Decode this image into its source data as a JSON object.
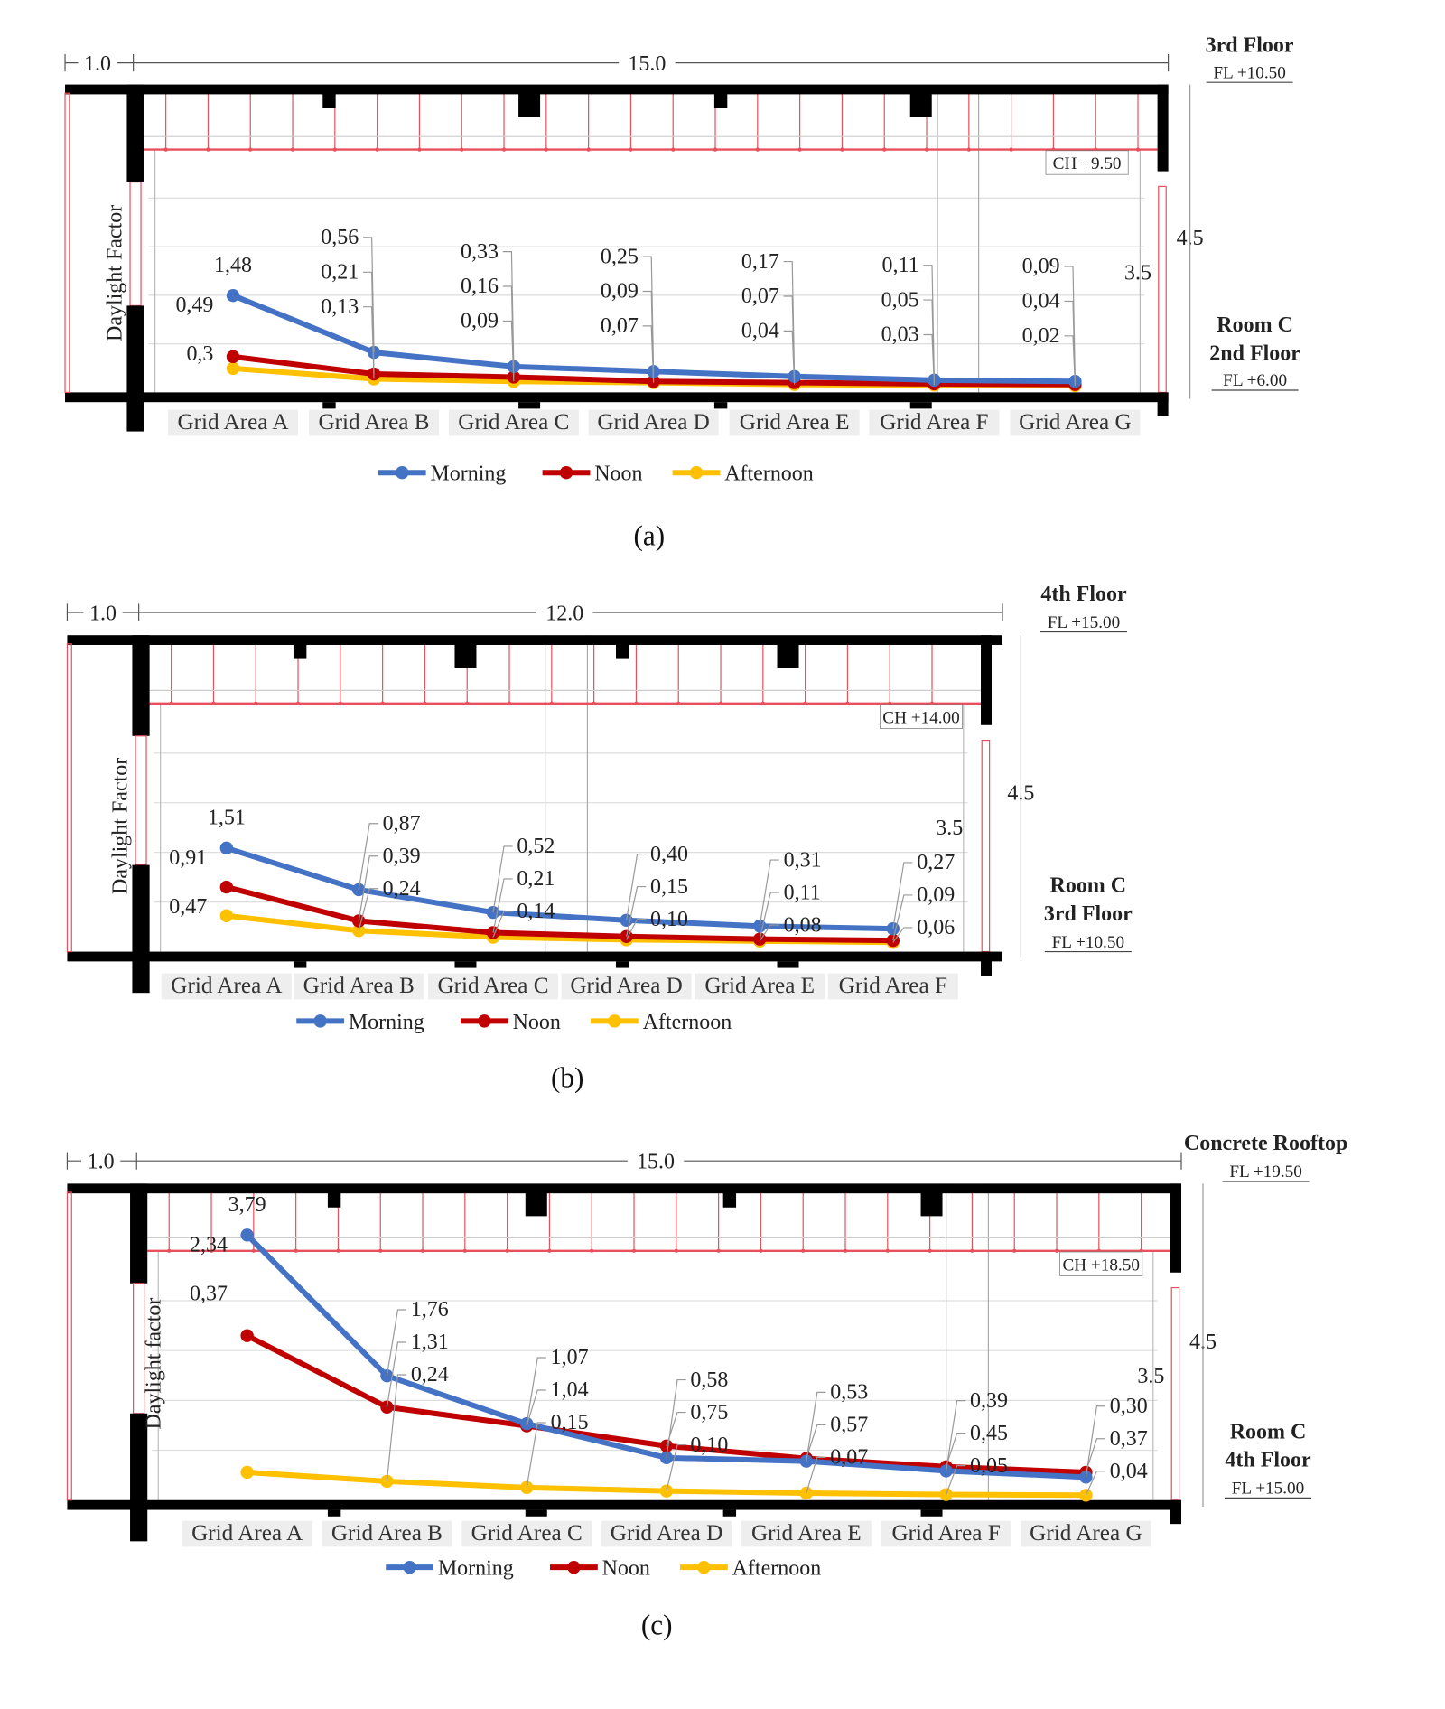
{
  "colors": {
    "Morning": "#4472c4",
    "Noon": "#c00000",
    "Afternoon": "#ffc000",
    "section_red": "#e8505b",
    "slab": "#000000"
  },
  "chart_data": [
    {
      "type": "line",
      "caption": "(a)",
      "ylabel": "Daylight Factor",
      "categories": [
        "Grid Area A",
        "Grid Area B",
        "Grid Area C",
        "Grid Area D",
        "Grid Area E",
        "Grid Area F",
        "Grid Area G"
      ],
      "series": [
        {
          "name": "Morning",
          "values": [
            1.48,
            0.56,
            0.33,
            0.25,
            0.17,
            0.11,
            0.09
          ]
        },
        {
          "name": "Noon",
          "values": [
            0.49,
            0.21,
            0.16,
            0.09,
            0.07,
            0.05,
            0.04
          ]
        },
        {
          "name": "Afternoon",
          "values": [
            0.3,
            0.13,
            0.09,
            0.07,
            0.04,
            0.03,
            0.02
          ]
        }
      ],
      "data_labels": [
        [
          "1,48",
          "0,49",
          "0,3"
        ],
        [
          "0,56",
          "0,21",
          "0,13"
        ],
        [
          "0,33",
          "0,16",
          "0,09"
        ],
        [
          "0,25",
          "0,09",
          "0,07"
        ],
        [
          "0,17",
          "0,07",
          "0,04"
        ],
        [
          "0,11",
          "0,05",
          "0,03"
        ],
        [
          "0,09",
          "0,04",
          "0,02"
        ]
      ],
      "legend": "bottom",
      "section": {
        "dim_left": "1.0",
        "dim_span": "15.0",
        "upper_floor": "3rd Floor",
        "upper_fl": "FL +10.50",
        "ceiling": "CH +9.50",
        "height_total": "4.5",
        "height_clear": "3.5",
        "room": "Room C",
        "floor": "2nd Floor",
        "fl": "FL +6.00"
      }
    },
    {
      "type": "line",
      "caption": "(b)",
      "ylabel": "Daylight Factor",
      "categories": [
        "Grid Area A",
        "Grid Area B",
        "Grid Area C",
        "Grid Area D",
        "Grid Area E",
        "Grid Area F"
      ],
      "series": [
        {
          "name": "Morning",
          "values": [
            1.51,
            0.87,
            0.52,
            0.4,
            0.31,
            0.27
          ]
        },
        {
          "name": "Noon",
          "values": [
            0.91,
            0.39,
            0.21,
            0.15,
            0.11,
            0.09
          ]
        },
        {
          "name": "Afternoon",
          "values": [
            0.47,
            0.24,
            0.14,
            0.1,
            0.08,
            0.06
          ]
        }
      ],
      "data_labels": [
        [
          "1,51",
          "0,91",
          "0,47"
        ],
        [
          "0,87",
          "0,39",
          "0,24"
        ],
        [
          "0,52",
          "0,21",
          "0,14"
        ],
        [
          "0,40",
          "0,15",
          "0,10"
        ],
        [
          "0,31",
          "0,11",
          "0,08"
        ],
        [
          "0,27",
          "0,09",
          "0,06"
        ]
      ],
      "legend": "bottom",
      "section": {
        "dim_left": "1.0",
        "dim_span": "12.0",
        "upper_floor": "4th Floor",
        "upper_fl": "FL +15.00",
        "ceiling": "CH +14.00",
        "height_total": "4.5",
        "height_clear": "3.5",
        "room": "Room C",
        "floor": "3rd Floor",
        "fl": "FL +10.50"
      }
    },
    {
      "type": "line",
      "caption": "(c)",
      "ylabel": "Daylight factor",
      "categories": [
        "Grid Area A",
        "Grid Area B",
        "Grid Area C",
        "Grid Area D",
        "Grid Area E",
        "Grid Area F",
        "Grid Area G"
      ],
      "series": [
        {
          "name": "Morning",
          "values": [
            3.79,
            1.76,
            1.07,
            0.58,
            0.53,
            0.39,
            0.3
          ]
        },
        {
          "name": "Noon",
          "values": [
            2.34,
            1.31,
            1.04,
            0.75,
            0.57,
            0.45,
            0.37
          ]
        },
        {
          "name": "Afternoon",
          "values": [
            0.37,
            0.24,
            0.15,
            0.1,
            0.07,
            0.05,
            0.04
          ]
        }
      ],
      "data_labels": [
        [
          "3,79",
          "2,34",
          "0,37"
        ],
        [
          "1,76",
          "1,31",
          "0,24"
        ],
        [
          "1,07",
          "1,04",
          "0,15"
        ],
        [
          "0,58",
          "0,75",
          "0,10"
        ],
        [
          "0,53",
          "0,57",
          "0,07"
        ],
        [
          "0,39",
          "0,45",
          "0,05"
        ],
        [
          "0,30",
          "0,37",
          "0,04"
        ]
      ],
      "legend": "bottom",
      "section": {
        "dim_left": "1.0",
        "dim_span": "15.0",
        "upper_floor": "Concrete Rooftop",
        "upper_fl": "FL +19.50",
        "ceiling": "CH +18.50",
        "height_total": "4.5",
        "height_clear": "3.5",
        "room": "Room C",
        "floor": "4th Floor",
        "fl": "FL +15.00"
      }
    }
  ]
}
